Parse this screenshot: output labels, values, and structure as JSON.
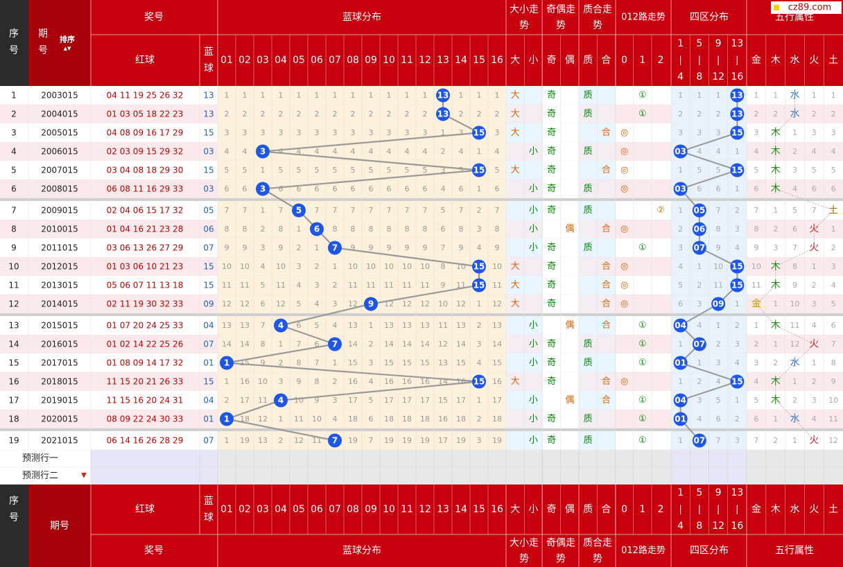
{
  "site_badge": "cz89.com",
  "header": {
    "seq": "序号",
    "period": "期号",
    "sort": "排序",
    "draw": "奖号",
    "red": "红球",
    "blue": "蓝球",
    "blue_dist": "蓝球分布",
    "size_trend": "大小走势",
    "oe_trend": "奇偶走势",
    "pc_trend": "质合走势",
    "road_trend": "012路走势",
    "zone_dist": "四区分布",
    "wuxing_attr": "五行属性",
    "blue_nums": [
      "01",
      "02",
      "03",
      "04",
      "05",
      "06",
      "07",
      "08",
      "09",
      "10",
      "11",
      "12",
      "13",
      "14",
      "15",
      "16"
    ],
    "size": [
      "大",
      "小"
    ],
    "oe": [
      "奇",
      "偶"
    ],
    "pc": [
      "质",
      "合"
    ],
    "road": [
      "0",
      "1",
      "2"
    ],
    "zones": [
      "1|4",
      "5|8",
      "9|12",
      "13|16"
    ],
    "wuxing": [
      "金",
      "木",
      "水",
      "火",
      "土"
    ]
  },
  "footer": {
    "seq": "序号",
    "period": "期号"
  },
  "predict": [
    "预测行一",
    "预测行二"
  ],
  "rows": [
    {
      "seq": "1",
      "period": "2003015",
      "red": "04 11 19 25 26 32",
      "blue": "13",
      "miss": [
        "1",
        "1",
        "1",
        "1",
        "1",
        "1",
        "1",
        "1",
        "1",
        "1",
        "1",
        "1",
        "13",
        "1",
        "1",
        "1"
      ],
      "size": "大",
      "oe": "奇",
      "pc": "质",
      "road": "①",
      "zones": [
        "1",
        "1",
        "1",
        "13"
      ],
      "wx": [
        "1",
        "1",
        "水",
        "1",
        "1"
      ]
    },
    {
      "seq": "2",
      "period": "2004015",
      "red": "01 03 05 18 22 23",
      "blue": "13",
      "miss": [
        "2",
        "2",
        "2",
        "2",
        "2",
        "2",
        "2",
        "2",
        "2",
        "2",
        "2",
        "2",
        "13",
        "2",
        "2",
        "2"
      ],
      "size": "大",
      "oe": "奇",
      "pc": "质",
      "road": "①",
      "zones": [
        "2",
        "2",
        "2",
        "13"
      ],
      "wx": [
        "2",
        "2",
        "水",
        "2",
        "2"
      ]
    },
    {
      "seq": "3",
      "period": "2005015",
      "red": "04 08 09 16 17 29",
      "blue": "15",
      "miss": [
        "3",
        "3",
        "3",
        "3",
        "3",
        "3",
        "3",
        "3",
        "3",
        "3",
        "3",
        "3",
        "1",
        "3",
        "15",
        "3"
      ],
      "size": "大",
      "oe": "奇",
      "pc": "合",
      "road": "◎",
      "zones": [
        "3",
        "3",
        "3",
        "15"
      ],
      "wx": [
        "3",
        "木",
        "1",
        "3",
        "3"
      ]
    },
    {
      "seq": "4",
      "period": "2006015",
      "red": "02 03 09 15 29 32",
      "blue": "03",
      "miss": [
        "4",
        "4",
        "3",
        "4",
        "4",
        "4",
        "4",
        "4",
        "4",
        "4",
        "4",
        "4",
        "2",
        "4",
        "1",
        "4"
      ],
      "size": "小",
      "oe": "奇",
      "pc": "质",
      "road": "◎",
      "zones": [
        "03",
        "4",
        "4",
        "1"
      ],
      "wx": [
        "4",
        "木",
        "2",
        "4",
        "4"
      ]
    },
    {
      "seq": "5",
      "period": "2007015",
      "red": "03 04 08 18 29 30",
      "blue": "15",
      "miss": [
        "5",
        "5",
        "1",
        "5",
        "5",
        "5",
        "5",
        "5",
        "5",
        "5",
        "5",
        "5",
        "3",
        "5",
        "15",
        "5"
      ],
      "size": "大",
      "oe": "奇",
      "pc": "合",
      "road": "◎",
      "zones": [
        "1",
        "5",
        "5",
        "15"
      ],
      "wx": [
        "5",
        "木",
        "3",
        "5",
        "5"
      ]
    },
    {
      "seq": "6",
      "period": "2008015",
      "red": "06 08 11 16 29 33",
      "blue": "03",
      "miss": [
        "6",
        "6",
        "3",
        "6",
        "6",
        "6",
        "6",
        "6",
        "6",
        "6",
        "6",
        "6",
        "4",
        "6",
        "1",
        "6"
      ],
      "size": "小",
      "oe": "奇",
      "pc": "质",
      "road": "◎",
      "zones": [
        "03",
        "6",
        "6",
        "1"
      ],
      "wx": [
        "6",
        "木",
        "4",
        "6",
        "6"
      ]
    },
    {
      "seq": "7",
      "period": "2009015",
      "red": "02 04 06 15 17 32",
      "blue": "05",
      "miss": [
        "7",
        "7",
        "1",
        "7",
        "5",
        "7",
        "7",
        "7",
        "7",
        "7",
        "7",
        "7",
        "5",
        "7",
        "2",
        "7"
      ],
      "size": "小",
      "oe": "奇",
      "pc": "质",
      "road": "②",
      "zones": [
        "1",
        "05",
        "7",
        "2"
      ],
      "wx": [
        "7",
        "1",
        "5",
        "7",
        "土"
      ]
    },
    {
      "seq": "8",
      "period": "2010015",
      "red": "01 04 16 21 23 28",
      "blue": "06",
      "miss": [
        "8",
        "8",
        "2",
        "8",
        "1",
        "6",
        "8",
        "8",
        "8",
        "8",
        "8",
        "8",
        "6",
        "8",
        "3",
        "8"
      ],
      "size": "小",
      "oe": "偶",
      "pc": "合",
      "road": "◎",
      "zones": [
        "2",
        "06",
        "8",
        "3"
      ],
      "wx": [
        "8",
        "2",
        "6",
        "火",
        "1"
      ]
    },
    {
      "seq": "9",
      "period": "2011015",
      "red": "03 06 13 26 27 29",
      "blue": "07",
      "miss": [
        "9",
        "9",
        "3",
        "9",
        "2",
        "1",
        "7",
        "9",
        "9",
        "9",
        "9",
        "9",
        "7",
        "9",
        "4",
        "9"
      ],
      "size": "小",
      "oe": "奇",
      "pc": "质",
      "road": "①",
      "zones": [
        "3",
        "07",
        "9",
        "4"
      ],
      "wx": [
        "9",
        "3",
        "7",
        "火",
        "2"
      ]
    },
    {
      "seq": "10",
      "period": "2012015",
      "red": "01 03 06 10 21 23",
      "blue": "15",
      "miss": [
        "10",
        "10",
        "4",
        "10",
        "3",
        "2",
        "1",
        "10",
        "10",
        "10",
        "10",
        "10",
        "8",
        "10",
        "15",
        "10"
      ],
      "size": "大",
      "oe": "奇",
      "pc": "合",
      "road": "◎",
      "zones": [
        "4",
        "1",
        "10",
        "15"
      ],
      "wx": [
        "10",
        "木",
        "8",
        "1",
        "3"
      ]
    },
    {
      "seq": "11",
      "period": "2013015",
      "red": "05 06 07 11 13 18",
      "blue": "15",
      "miss": [
        "11",
        "11",
        "5",
        "11",
        "4",
        "3",
        "2",
        "11",
        "11",
        "11",
        "11",
        "11",
        "9",
        "11",
        "15",
        "11"
      ],
      "size": "大",
      "oe": "奇",
      "pc": "合",
      "road": "◎",
      "zones": [
        "5",
        "2",
        "11",
        "15"
      ],
      "wx": [
        "11",
        "木",
        "9",
        "2",
        "4"
      ]
    },
    {
      "seq": "12",
      "period": "2014015",
      "red": "02 11 19 30 32 33",
      "blue": "09",
      "miss": [
        "12",
        "12",
        "6",
        "12",
        "5",
        "4",
        "3",
        "12",
        "9",
        "12",
        "12",
        "12",
        "10",
        "12",
        "1",
        "12"
      ],
      "size": "大",
      "oe": "奇",
      "pc": "合",
      "road": "◎",
      "zones": [
        "6",
        "3",
        "09",
        "1"
      ],
      "wx": [
        "金",
        "1",
        "10",
        "3",
        "5"
      ]
    },
    {
      "seq": "13",
      "period": "2015015",
      "red": "01 07 20 24 25 33",
      "blue": "04",
      "miss": [
        "13",
        "13",
        "7",
        "4",
        "6",
        "5",
        "4",
        "13",
        "1",
        "13",
        "13",
        "13",
        "11",
        "13",
        "2",
        "13"
      ],
      "size": "小",
      "oe": "偶",
      "pc": "合",
      "road": "①",
      "zones": [
        "04",
        "4",
        "1",
        "2"
      ],
      "wx": [
        "1",
        "木",
        "11",
        "4",
        "6"
      ]
    },
    {
      "seq": "14",
      "period": "2016015",
      "red": "01 02 14 22 25 26",
      "blue": "07",
      "miss": [
        "14",
        "14",
        "8",
        "1",
        "7",
        "6",
        "7",
        "14",
        "2",
        "14",
        "14",
        "14",
        "12",
        "14",
        "3",
        "14"
      ],
      "size": "小",
      "oe": "奇",
      "pc": "质",
      "road": "①",
      "zones": [
        "1",
        "07",
        "2",
        "3"
      ],
      "wx": [
        "2",
        "1",
        "12",
        "火",
        "7"
      ]
    },
    {
      "seq": "15",
      "period": "2017015",
      "red": "01 08 09 14 17 32",
      "blue": "01",
      "miss": [
        "1",
        "15",
        "9",
        "2",
        "8",
        "7",
        "1",
        "15",
        "3",
        "15",
        "15",
        "15",
        "13",
        "15",
        "4",
        "15"
      ],
      "size": "小",
      "oe": "奇",
      "pc": "质",
      "road": "①",
      "zones": [
        "01",
        "1",
        "3",
        "4"
      ],
      "wx": [
        "3",
        "2",
        "水",
        "1",
        "8"
      ]
    },
    {
      "seq": "16",
      "period": "2018015",
      "red": "11 15 20 21 26 33",
      "blue": "15",
      "miss": [
        "1",
        "16",
        "10",
        "3",
        "9",
        "8",
        "2",
        "16",
        "4",
        "16",
        "16",
        "16",
        "14",
        "16",
        "15",
        "16"
      ],
      "size": "大",
      "oe": "奇",
      "pc": "合",
      "road": "◎",
      "zones": [
        "1",
        "2",
        "4",
        "15"
      ],
      "wx": [
        "4",
        "木",
        "1",
        "2",
        "9"
      ]
    },
    {
      "seq": "17",
      "period": "2019015",
      "red": "11 15 16 20 24 31",
      "blue": "04",
      "miss": [
        "2",
        "17",
        "11",
        "4",
        "10",
        "9",
        "3",
        "17",
        "5",
        "17",
        "17",
        "17",
        "15",
        "17",
        "1",
        "17"
      ],
      "size": "小",
      "oe": "偶",
      "pc": "合",
      "road": "①",
      "zones": [
        "04",
        "3",
        "5",
        "1"
      ],
      "wx": [
        "5",
        "木",
        "2",
        "3",
        "10"
      ]
    },
    {
      "seq": "18",
      "period": "2020015",
      "red": "08 09 22 24 30 33",
      "blue": "01",
      "miss": [
        "1",
        "18",
        "12",
        "1",
        "11",
        "10",
        "4",
        "18",
        "6",
        "18",
        "18",
        "18",
        "16",
        "18",
        "2",
        "18"
      ],
      "size": "小",
      "oe": "奇",
      "pc": "质",
      "road": "①",
      "zones": [
        "01",
        "4",
        "6",
        "2"
      ],
      "wx": [
        "6",
        "1",
        "水",
        "4",
        "11"
      ]
    },
    {
      "seq": "19",
      "period": "2021015",
      "red": "06 14 16 26 28 29",
      "blue": "07",
      "miss": [
        "1",
        "19",
        "13",
        "2",
        "12",
        "11",
        "7",
        "19",
        "7",
        "19",
        "19",
        "19",
        "17",
        "19",
        "3",
        "19"
      ],
      "size": "小",
      "oe": "奇",
      "pc": "质",
      "road": "①",
      "zones": [
        "1",
        "07",
        "7",
        "3"
      ],
      "wx": [
        "7",
        "2",
        "1",
        "火",
        "12"
      ]
    }
  ],
  "hits": {
    "blue": [
      13,
      13,
      15,
      3,
      15,
      3,
      5,
      6,
      7,
      15,
      15,
      9,
      4,
      7,
      1,
      15,
      4,
      1,
      7
    ],
    "size": [
      0,
      0,
      0,
      1,
      0,
      1,
      1,
      1,
      1,
      0,
      0,
      0,
      1,
      1,
      1,
      0,
      1,
      1,
      1
    ],
    "oe": [
      0,
      0,
      0,
      0,
      0,
      0,
      0,
      1,
      0,
      0,
      0,
      0,
      1,
      0,
      0,
      0,
      1,
      0,
      0
    ],
    "pc": [
      0,
      0,
      1,
      0,
      1,
      0,
      0,
      1,
      0,
      1,
      1,
      1,
      1,
      0,
      0,
      1,
      1,
      0,
      0
    ],
    "road": [
      1,
      1,
      0,
      0,
      0,
      0,
      2,
      0,
      1,
      0,
      0,
      0,
      1,
      1,
      1,
      0,
      1,
      1,
      1
    ],
    "zone": [
      3,
      3,
      3,
      0,
      3,
      0,
      1,
      1,
      1,
      3,
      3,
      2,
      0,
      1,
      0,
      3,
      0,
      0,
      1
    ],
    "wx": [
      2,
      2,
      1,
      1,
      1,
      1,
      4,
      3,
      3,
      1,
      1,
      0,
      1,
      3,
      2,
      1,
      1,
      2,
      3
    ]
  },
  "colors": {
    "header_red": "#c8000e",
    "row_odd": "#ffffff",
    "row_even": "#fbeaec",
    "blue_zone": "#fdf1dc",
    "ball": "#1d56e8",
    "trend_line": "#999999",
    "red_text": "#c00000",
    "green_text": "#008800",
    "orange_text": "#e06000",
    "blue_text": "#3a7ad8",
    "wx_colors": [
      "#c99700",
      "#1e8a12",
      "#3a7ad8",
      "#d8262a",
      "#a07a00"
    ]
  }
}
